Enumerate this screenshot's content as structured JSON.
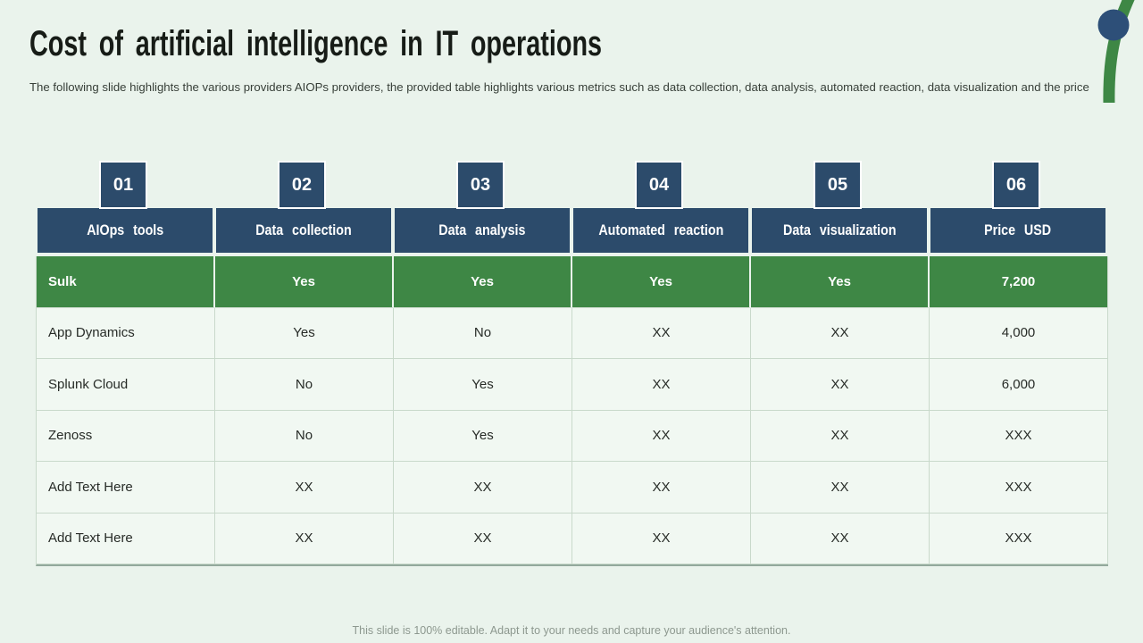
{
  "slide": {
    "title": "Cost of artificial intelligence in IT operations",
    "subtitle": "The following slide highlights the various providers AIOPs providers, the provided table highlights various metrics such as data collection, data analysis, automated reaction, data visualization and the price",
    "footer": "This slide is 100% editable. Adapt it to your needs and capture your audience's attention."
  },
  "logo": {
    "dot_color": "#2d4f78",
    "arc_color": "#3e8745"
  },
  "colors": {
    "background": "#eaf3ec",
    "header_navy": "#2c4b6b",
    "highlight_green": "#3e8745",
    "cell_background": "#f1f8f2",
    "cell_border": "#c9d9cb"
  },
  "table": {
    "badges": [
      "01",
      "02",
      "03",
      "04",
      "05",
      "06"
    ],
    "headers": [
      "AIOps tools",
      "Data collection",
      "Data analysis",
      "Automated reaction",
      "Data visualization",
      "Price USD"
    ],
    "rows": [
      {
        "highlight": true,
        "cells": [
          "Sulk",
          "Yes",
          "Yes",
          "Yes",
          "Yes",
          "7,200"
        ]
      },
      {
        "highlight": false,
        "cells": [
          "App Dynamics",
          "Yes",
          "No",
          "XX",
          "XX",
          "4,000"
        ]
      },
      {
        "highlight": false,
        "cells": [
          "Splunk Cloud",
          "No",
          "Yes",
          "XX",
          "XX",
          "6,000"
        ]
      },
      {
        "highlight": false,
        "cells": [
          "Zenoss",
          "No",
          "Yes",
          "XX",
          "XX",
          "XXX"
        ]
      },
      {
        "highlight": false,
        "cells": [
          "Add Text Here",
          "XX",
          "XX",
          "XX",
          "XX",
          "XXX"
        ]
      },
      {
        "highlight": false,
        "cells": [
          "Add Text Here",
          "XX",
          "XX",
          "XX",
          "XX",
          "XXX"
        ]
      }
    ]
  }
}
